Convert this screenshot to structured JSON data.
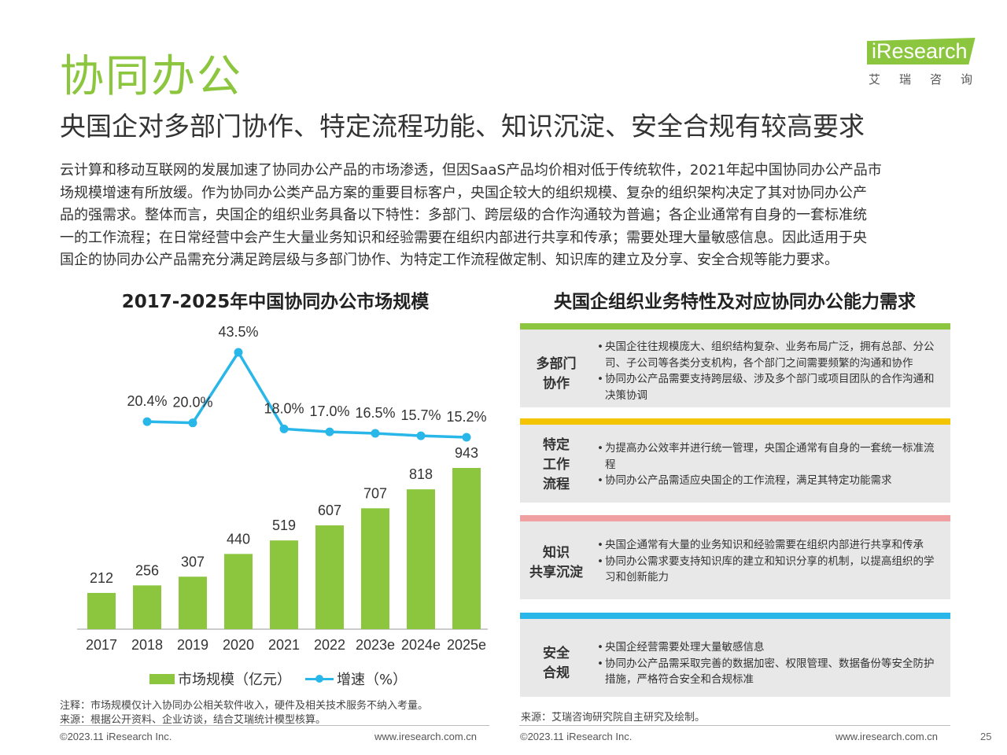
{
  "header": {
    "title": "协同办公",
    "subtitle": "央国企对多部门协作、特定流程功能、知识沉淀、安全合规有较高要求",
    "logo_word": "iResearch",
    "logo_sub": "艾瑞咨询"
  },
  "intro_lines": [
    "云计算和移动互联网的发展加速了协同办公产品的市场渗透，但因SaaS产品均价相对低于传统软件，2021年起中国协同办公产品市",
    "场规模增速有所放缓。作为协同办公类产品方案的重要目标客户，央国企较大的组织规模、复杂的组织架构决定了其对协同办公产",
    "品的强需求。整体而言，央国企的组织业务具备以下特性：多部门、跨层级的合作沟通较为普遍；各企业通常有自身的一套标准统",
    "一的工作流程；在日常经营中会产生大量业务知识和经验需要在组织内部进行共享和传承；需要处理大量敏感信息。因此适用于央",
    "国企的协同办公产品需充分满足跨层级与多部门协作、为特定工作流程做定制、知识库的建立及分享、安全合规等能力要求。"
  ],
  "chart_data": {
    "type": "bar",
    "title": "2017-2025年中国协同办公市场规模",
    "categories": [
      "2017",
      "2018",
      "2019",
      "2020",
      "2021",
      "2022",
      "2023e",
      "2024e",
      "2025e"
    ],
    "series": [
      {
        "name": "市场规模（亿元）",
        "type": "bar",
        "values": [
          212,
          256,
          307,
          440,
          519,
          607,
          707,
          818,
          943
        ],
        "color": "#8cc63f"
      },
      {
        "name": "增速（%）",
        "type": "line",
        "values": [
          null,
          20.4,
          20.0,
          43.5,
          18.0,
          17.0,
          16.5,
          15.7,
          15.2
        ],
        "color": "#29b6e8"
      }
    ],
    "value_labels": [
      "212",
      "256",
      "307",
      "440",
      "519",
      "607",
      "707",
      "818",
      "943"
    ],
    "growth_labels": [
      "",
      "20.4%",
      "20.0%",
      "43.5%",
      "18.0%",
      "17.0%",
      "16.5%",
      "15.7%",
      "15.2%"
    ],
    "grid": false,
    "legend_position": "bottom"
  },
  "panel": {
    "title": "央国企组织业务特性及对应协同办公能力需求",
    "cards": [
      {
        "label_lines": [
          "多部门",
          "协作"
        ],
        "color": "#8cc63f",
        "bullets": [
          "央国企往往规模庞大、组织结构复杂、业务布局广泛，拥有总部、分公司、子公司等各类分支机构，各个部门之间需要频繁的沟通和协作",
          "协同办公产品需要支持跨层级、涉及多个部门或项目团队的合作沟通和决策协调"
        ]
      },
      {
        "label_lines": [
          "特定",
          "工作",
          "流程"
        ],
        "color": "#f5c400",
        "bullets": [
          "为提高办公效率并进行统一管理，央国企通常有自身的一套统一标准流程",
          "协同办公产品需适应央国企的工作流程，满足其特定功能需求"
        ]
      },
      {
        "label_lines": [
          "知识",
          "共享沉淀"
        ],
        "color": "#f0a0a0",
        "bullets": [
          "央国企通常有大量的业务知识和经验需要在组织内部进行共享和传承",
          "协同办公需求要支持知识库的建立和知识分享的机制，以提高组织的学习和创新能力"
        ]
      },
      {
        "label_lines": [
          "安全",
          "合规"
        ],
        "color": "#29b6e8",
        "bullets": [
          "央国企经营需要处理大量敏感信息",
          "协同办公产品需采取完善的数据加密、权限管理、数据备份等安全防护措施，严格符合安全和合规标准"
        ]
      }
    ]
  },
  "notes": {
    "note": "注释：市场规模仅计入协同办公相关软件收入，硬件及相关技术服务不纳入考量。",
    "source_left": "来源：根据公开资料、企业访谈，结合艾瑞统计模型核算。",
    "source_right": "来源：艾瑞咨询研究院自主研究及绘制。"
  },
  "footer": {
    "copyright_left": "©2023.11 iResearch Inc.",
    "site_left": "www.iresearch.com.cn",
    "copyright_right": "©2023.11 iResearch Inc.",
    "site_right": "www.iresearch.com.cn",
    "page_number": "25"
  }
}
